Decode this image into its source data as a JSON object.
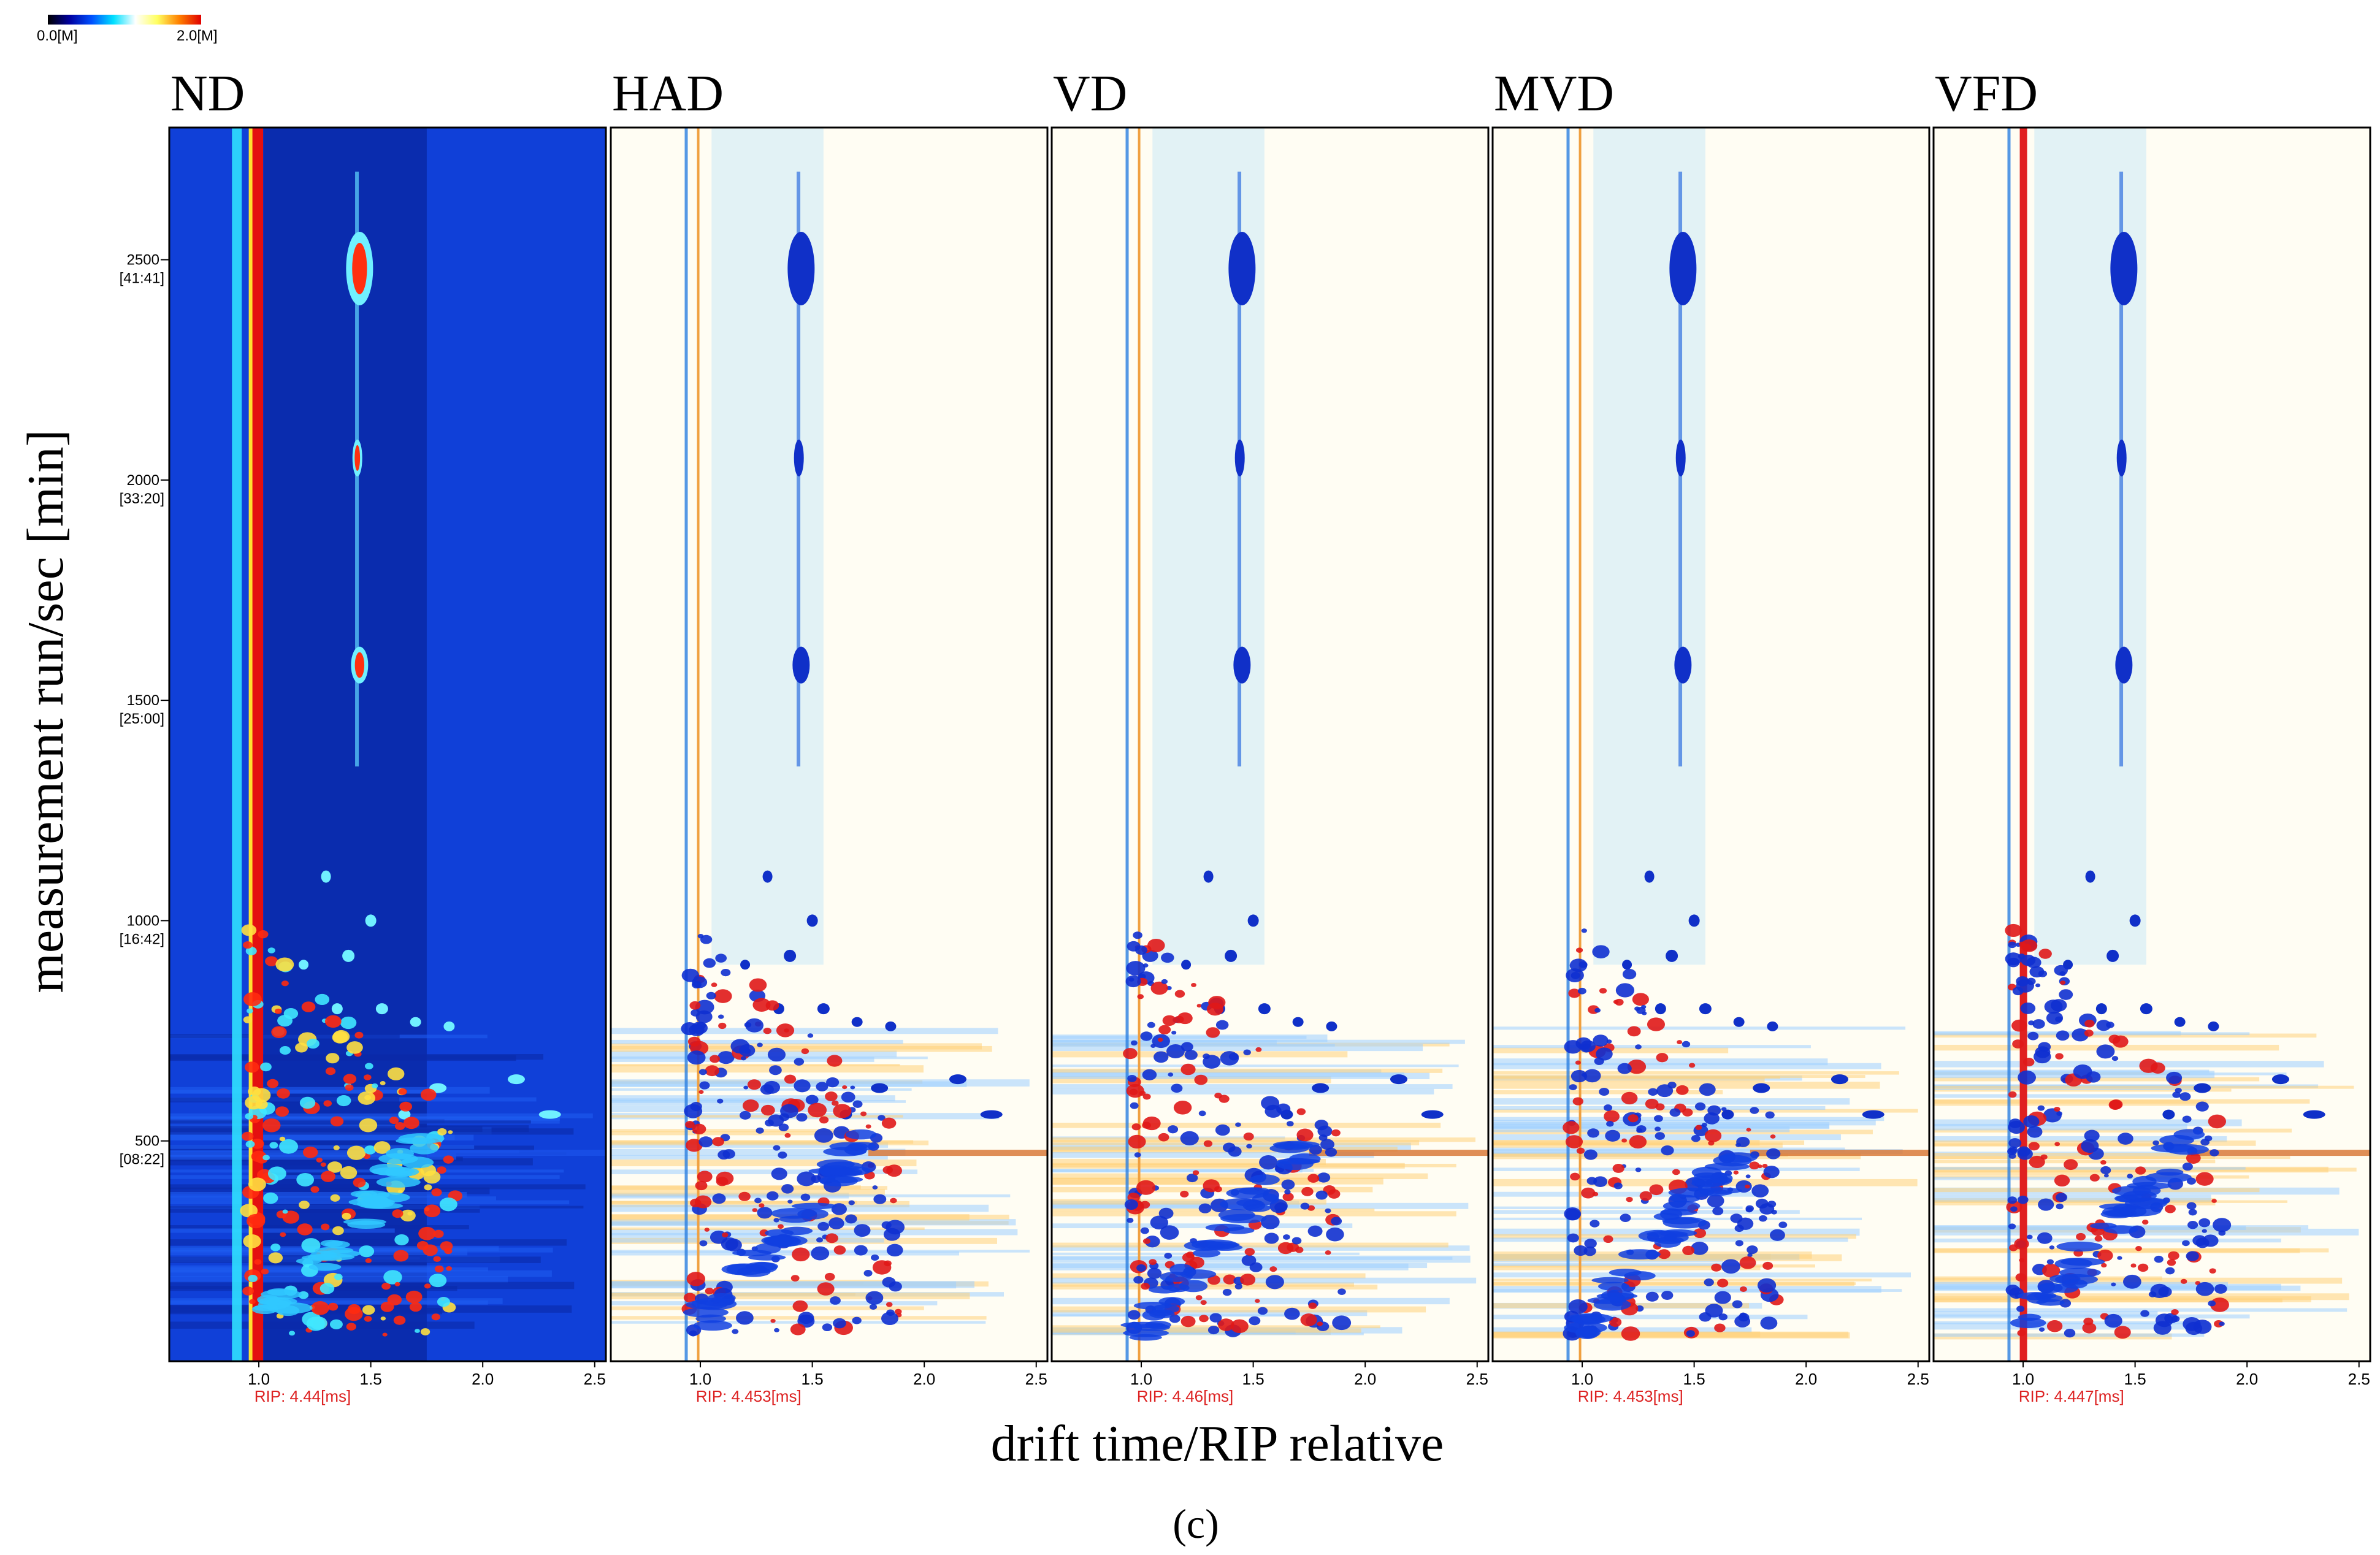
{
  "colorbar": {
    "min_label": "0.0[M]",
    "max_label": "2.0[M]",
    "stops": [
      "#000000",
      "#0000a0",
      "#0050ff",
      "#00e0ff",
      "#ffffff",
      "#ffff60",
      "#ff8000",
      "#e00000"
    ]
  },
  "colors": {
    "nd_background": "#1040d8",
    "nd_dark": "#061c8c",
    "diff_background": "#fffdf3",
    "rip_red": "#dd2222",
    "positive": "#e01010",
    "negative": "#1030d0"
  },
  "caption": "(c)",
  "chart_data": {
    "type": "heatmap",
    "xlabel": "drift time/RIP relative",
    "ylabel": "measurement run/sec [min]",
    "xlim": [
      0.6,
      2.55
    ],
    "ylim": [
      0,
      2800
    ],
    "x_ticks": [
      "1.0",
      "1.5",
      "2.0",
      "2.5"
    ],
    "x_tick_values": [
      1.0,
      1.5,
      2.0,
      2.5
    ],
    "y_ticks": [
      {
        "value": 500,
        "label": "500",
        "sub": "[08:22]"
      },
      {
        "value": 1000,
        "label": "1000",
        "sub": "[16:42]"
      },
      {
        "value": 1500,
        "label": "1500",
        "sub": "[25:00]"
      },
      {
        "value": 2000,
        "label": "2000",
        "sub": "[33:20]"
      },
      {
        "value": 2500,
        "label": "2500",
        "sub": "[41:41]"
      }
    ],
    "panels": [
      {
        "name": "ND",
        "rip": "RIP: 4.44[ms]",
        "mode": "raw"
      },
      {
        "name": "HAD",
        "rip": "RIP: 4.453[ms]",
        "mode": "difference"
      },
      {
        "name": "VD",
        "rip": "RIP: 4.46[ms]",
        "mode": "difference"
      },
      {
        "name": "MVD",
        "rip": "RIP: 4.453[ms]",
        "mode": "difference"
      },
      {
        "name": "VFD",
        "rip": "RIP: 4.447[ms]",
        "mode": "difference"
      }
    ]
  }
}
